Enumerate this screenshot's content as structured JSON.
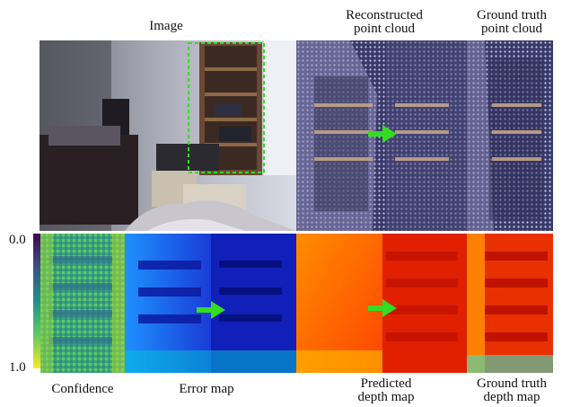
{
  "labels": {
    "image": "Image",
    "recon_line1": "Reconstructed",
    "recon_line2": "point cloud",
    "gt_pc_line1": "Ground truth",
    "gt_pc_line2": "point cloud",
    "scale_top": "0.0",
    "scale_bottom": "1.0",
    "confidence": "Confidence",
    "error_map": "Error map",
    "pred_line1": "Predicted",
    "pred_line2": "depth map",
    "gt_dm_line1": "Ground truth",
    "gt_dm_line2": "depth map"
  },
  "colors": {
    "arrow": "#33dd22",
    "crop_box": "#33dd22"
  }
}
